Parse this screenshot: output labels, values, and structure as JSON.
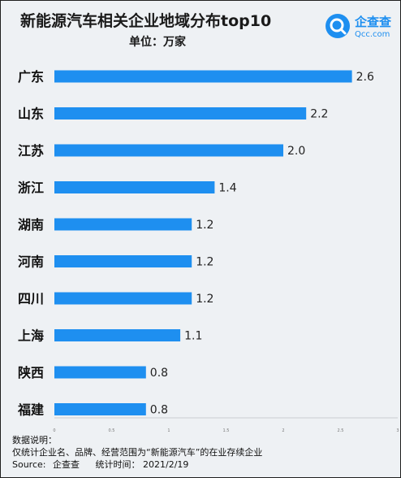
{
  "title": "新能源汽车相关企业地域分布top10",
  "subtitle": "单位：万家",
  "logo": {
    "name": "企查查",
    "domain": "Qcc.com",
    "icon": "qcc-logo-icon",
    "color": "#1e8ff0"
  },
  "notes": {
    "heading": "数据说明：",
    "line": "仅统计企业名、品牌、经营范围为“新能源汽车”的在业存续企业",
    "source_label": "Source:",
    "source_value": "企查查",
    "time_label": "统计时间：",
    "time_value": "2021/2/19"
  },
  "chart_data": {
    "type": "bar",
    "orientation": "horizontal",
    "title": "新能源汽车相关企业地域分布top10",
    "ylabel": "",
    "xlabel": "",
    "categories": [
      "广东",
      "山东",
      "江苏",
      "浙江",
      "湖南",
      "河南",
      "四川",
      "上海",
      "陕西",
      "福建"
    ],
    "values": [
      2.6,
      2.2,
      2.0,
      1.4,
      1.2,
      1.2,
      1.2,
      1.1,
      0.8,
      0.8
    ],
    "value_labels": [
      "2.6",
      "2.2",
      "2.0",
      "1.4",
      "1.2",
      "1.2",
      "1.2",
      "1.1",
      "0.8",
      "0.8"
    ],
    "xlim": [
      0,
      3
    ],
    "x_ticks": [
      0,
      0.5,
      1,
      1.5,
      2,
      2.5,
      3
    ],
    "x_tick_labels": [
      "0",
      "0.5",
      "1",
      "1.5",
      "2",
      "2.5",
      "3"
    ],
    "bar_color": "#1e8ff0",
    "grid": false,
    "legend": "none"
  }
}
